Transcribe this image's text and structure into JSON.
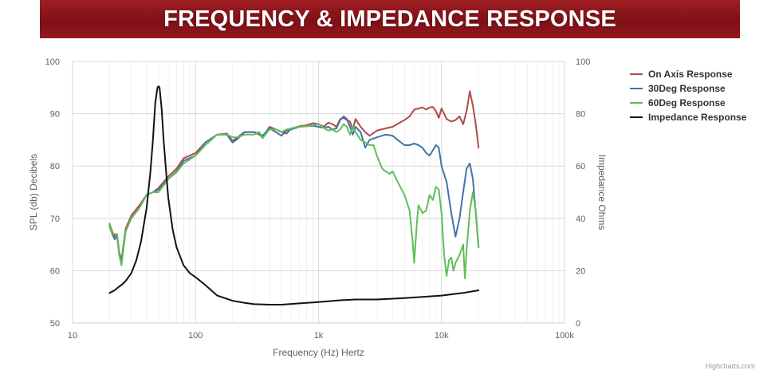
{
  "banner": {
    "title": "FREQUENCY & IMPEDANCE RESPONSE"
  },
  "credit": "Highcharts.com",
  "chart_data": {
    "type": "line",
    "title": "FREQUENCY & IMPEDANCE RESPONSE",
    "xlabel": "Frequency (Hz) Hertz",
    "ylabel": "SPL (db) Decibels",
    "ylabel_right": "Impedance Ohms",
    "x_scale": "log",
    "xlim": [
      10,
      100000
    ],
    "ylim": [
      50,
      100
    ],
    "ylim_right": [
      0,
      100
    ],
    "x_ticks": [
      10,
      100,
      1000,
      10000,
      100000
    ],
    "x_tick_labels": [
      "10",
      "100",
      "1k",
      "10k",
      "100k"
    ],
    "y_ticks": [
      50,
      60,
      70,
      80,
      90,
      100
    ],
    "y_tick_labels": [
      "50",
      "60",
      "70",
      "80",
      "90",
      "100"
    ],
    "y_right_ticks": [
      0,
      20,
      40,
      60,
      80,
      100
    ],
    "y_right_tick_labels": [
      "0",
      "20",
      "40",
      "60",
      "80",
      "100"
    ],
    "grid": true,
    "legend_position": "top-right",
    "series": [
      {
        "name": "On Axis Response",
        "color": "#b04a47",
        "axis": "left",
        "x": [
          20,
          21,
          22,
          23,
          24,
          25,
          27,
          30,
          35,
          40,
          45,
          50,
          60,
          70,
          80,
          100,
          120,
          150,
          180,
          200,
          220,
          250,
          300,
          330,
          350,
          400,
          450,
          500,
          550,
          600,
          700,
          800,
          900,
          1000,
          1100,
          1200,
          1300,
          1400,
          1500,
          1600,
          1700,
          1800,
          1900,
          2000,
          2200,
          2400,
          2600,
          3000,
          3500,
          4000,
          4500,
          5000,
          5500,
          6000,
          6500,
          7000,
          7500,
          8000,
          8500,
          9000,
          9500,
          10000,
          11000,
          12000,
          13000,
          14000,
          15000,
          16000,
          17000,
          18000,
          19000,
          20000
        ],
        "values": [
          69.0,
          67.5,
          66.5,
          67.0,
          63.5,
          62.0,
          68.0,
          70.5,
          72.5,
          74.5,
          75.0,
          75.8,
          78.0,
          79.5,
          81.5,
          82.5,
          84.5,
          86.0,
          86.2,
          84.8,
          85.5,
          86.5,
          86.5,
          86.0,
          85.5,
          87.5,
          87.0,
          86.5,
          86.2,
          87.2,
          87.6,
          87.8,
          88.2,
          88.0,
          87.5,
          88.3,
          88.0,
          87.5,
          89.0,
          89.2,
          88.8,
          88.5,
          87.0,
          89.0,
          87.5,
          86.5,
          85.8,
          86.8,
          87.2,
          87.5,
          88.2,
          88.8,
          89.5,
          90.8,
          91.0,
          91.2,
          90.8,
          91.2,
          91.3,
          90.5,
          89.2,
          91.0,
          89.0,
          88.5,
          88.8,
          89.5,
          88.0,
          90.5,
          94.3,
          91.5,
          88.0,
          83.5
        ]
      },
      {
        "name": "30Deg Response",
        "color": "#4572a7",
        "axis": "left",
        "x": [
          20,
          21,
          22,
          23,
          24,
          25,
          27,
          30,
          35,
          40,
          45,
          50,
          60,
          70,
          80,
          100,
          120,
          150,
          180,
          200,
          220,
          250,
          300,
          330,
          350,
          400,
          450,
          500,
          550,
          600,
          700,
          800,
          900,
          1000,
          1100,
          1200,
          1300,
          1400,
          1500,
          1600,
          1700,
          1800,
          1900,
          2000,
          2200,
          2400,
          2600,
          3000,
          3500,
          4000,
          4500,
          5000,
          5500,
          6000,
          6500,
          7000,
          7500,
          8000,
          8500,
          9000,
          9500,
          10000,
          11000,
          12000,
          13000,
          14000,
          15000,
          16000,
          17000,
          18000,
          19000,
          20000
        ],
        "values": [
          68.5,
          67.0,
          66.0,
          66.5,
          63.0,
          61.5,
          67.5,
          70.0,
          72.0,
          74.5,
          75.0,
          75.5,
          77.5,
          79.0,
          81.0,
          82.0,
          84.5,
          86.0,
          86.0,
          84.5,
          85.2,
          86.5,
          86.5,
          86.2,
          85.8,
          87.2,
          86.5,
          85.8,
          86.8,
          87.0,
          87.5,
          87.6,
          87.7,
          87.5,
          87.3,
          87.5,
          87.0,
          87.2,
          88.8,
          89.5,
          89.0,
          87.5,
          86.0,
          87.5,
          86.5,
          83.5,
          85.0,
          85.5,
          86.0,
          85.8,
          84.8,
          84.0,
          84.0,
          84.3,
          84.0,
          83.5,
          82.5,
          82.0,
          83.0,
          84.0,
          83.5,
          80.0,
          77.0,
          71.0,
          66.5,
          70.0,
          75.0,
          79.5,
          80.5,
          77.5,
          71.0,
          64.5
        ]
      },
      {
        "name": "60Deg Response",
        "color": "#5fbf59",
        "axis": "left",
        "x": [
          20,
          21,
          22,
          23,
          24,
          25,
          27,
          30,
          35,
          40,
          45,
          50,
          60,
          70,
          80,
          100,
          120,
          150,
          180,
          200,
          220,
          250,
          300,
          330,
          350,
          400,
          450,
          500,
          550,
          600,
          700,
          800,
          900,
          1000,
          1100,
          1200,
          1300,
          1400,
          1500,
          1600,
          1700,
          1800,
          1900,
          2000,
          2200,
          2400,
          2600,
          2800,
          3000,
          3300,
          3500,
          3800,
          4000,
          4500,
          5000,
          5500,
          5800,
          6000,
          6300,
          6500,
          7000,
          7500,
          8000,
          8500,
          9000,
          9500,
          10000,
          10500,
          11000,
          11500,
          12000,
          12500,
          13000,
          14000,
          15000,
          15500,
          16000,
          17000,
          18000,
          19000,
          20000
        ],
        "values": [
          69.0,
          67.0,
          67.0,
          67.0,
          63.0,
          61.0,
          67.5,
          70.0,
          72.0,
          74.5,
          75.0,
          75.0,
          77.5,
          78.8,
          80.5,
          82.0,
          84.0,
          86.0,
          86.0,
          85.5,
          85.5,
          86.0,
          86.0,
          86.5,
          85.3,
          87.0,
          87.0,
          86.5,
          87.0,
          87.2,
          87.5,
          87.6,
          87.8,
          88.0,
          87.3,
          86.8,
          87.0,
          86.5,
          87.0,
          88.0,
          87.5,
          86.0,
          87.5,
          86.5,
          85.0,
          84.5,
          84.0,
          84.0,
          81.8,
          79.5,
          79.0,
          78.5,
          79.0,
          76.5,
          74.5,
          71.5,
          66.0,
          61.5,
          69.0,
          72.5,
          71.0,
          71.5,
          74.5,
          73.5,
          76.0,
          75.5,
          71.0,
          63.0,
          59.0,
          62.0,
          62.5,
          60.0,
          61.5,
          63.0,
          65.0,
          58.5,
          64.0,
          71.5,
          75.0,
          71.5,
          64.5
        ]
      },
      {
        "name": "Impedance Response",
        "color": "#111111",
        "axis": "right",
        "x": [
          20,
          22,
          24,
          25,
          27,
          30,
          33,
          36,
          40,
          43,
          45,
          47,
          49,
          50,
          51,
          53,
          55,
          58,
          60,
          65,
          70,
          80,
          90,
          100,
          120,
          150,
          200,
          250,
          300,
          400,
          500,
          700,
          1000,
          1500,
          2000,
          3000,
          5000,
          7000,
          10000,
          15000,
          20000
        ],
        "values": [
          11.5,
          12.5,
          14.0,
          14.5,
          16.0,
          19.0,
          24.0,
          31.0,
          44.0,
          58.0,
          70.0,
          84.0,
          90.0,
          90.5,
          90.0,
          82.0,
          70.0,
          56.0,
          48.0,
          36.0,
          29.0,
          22.0,
          19.0,
          17.5,
          14.5,
          10.5,
          8.5,
          7.7,
          7.2,
          7.0,
          7.0,
          7.5,
          8.0,
          8.7,
          9.0,
          9.0,
          9.5,
          10.0,
          10.5,
          11.5,
          12.5
        ]
      }
    ]
  }
}
